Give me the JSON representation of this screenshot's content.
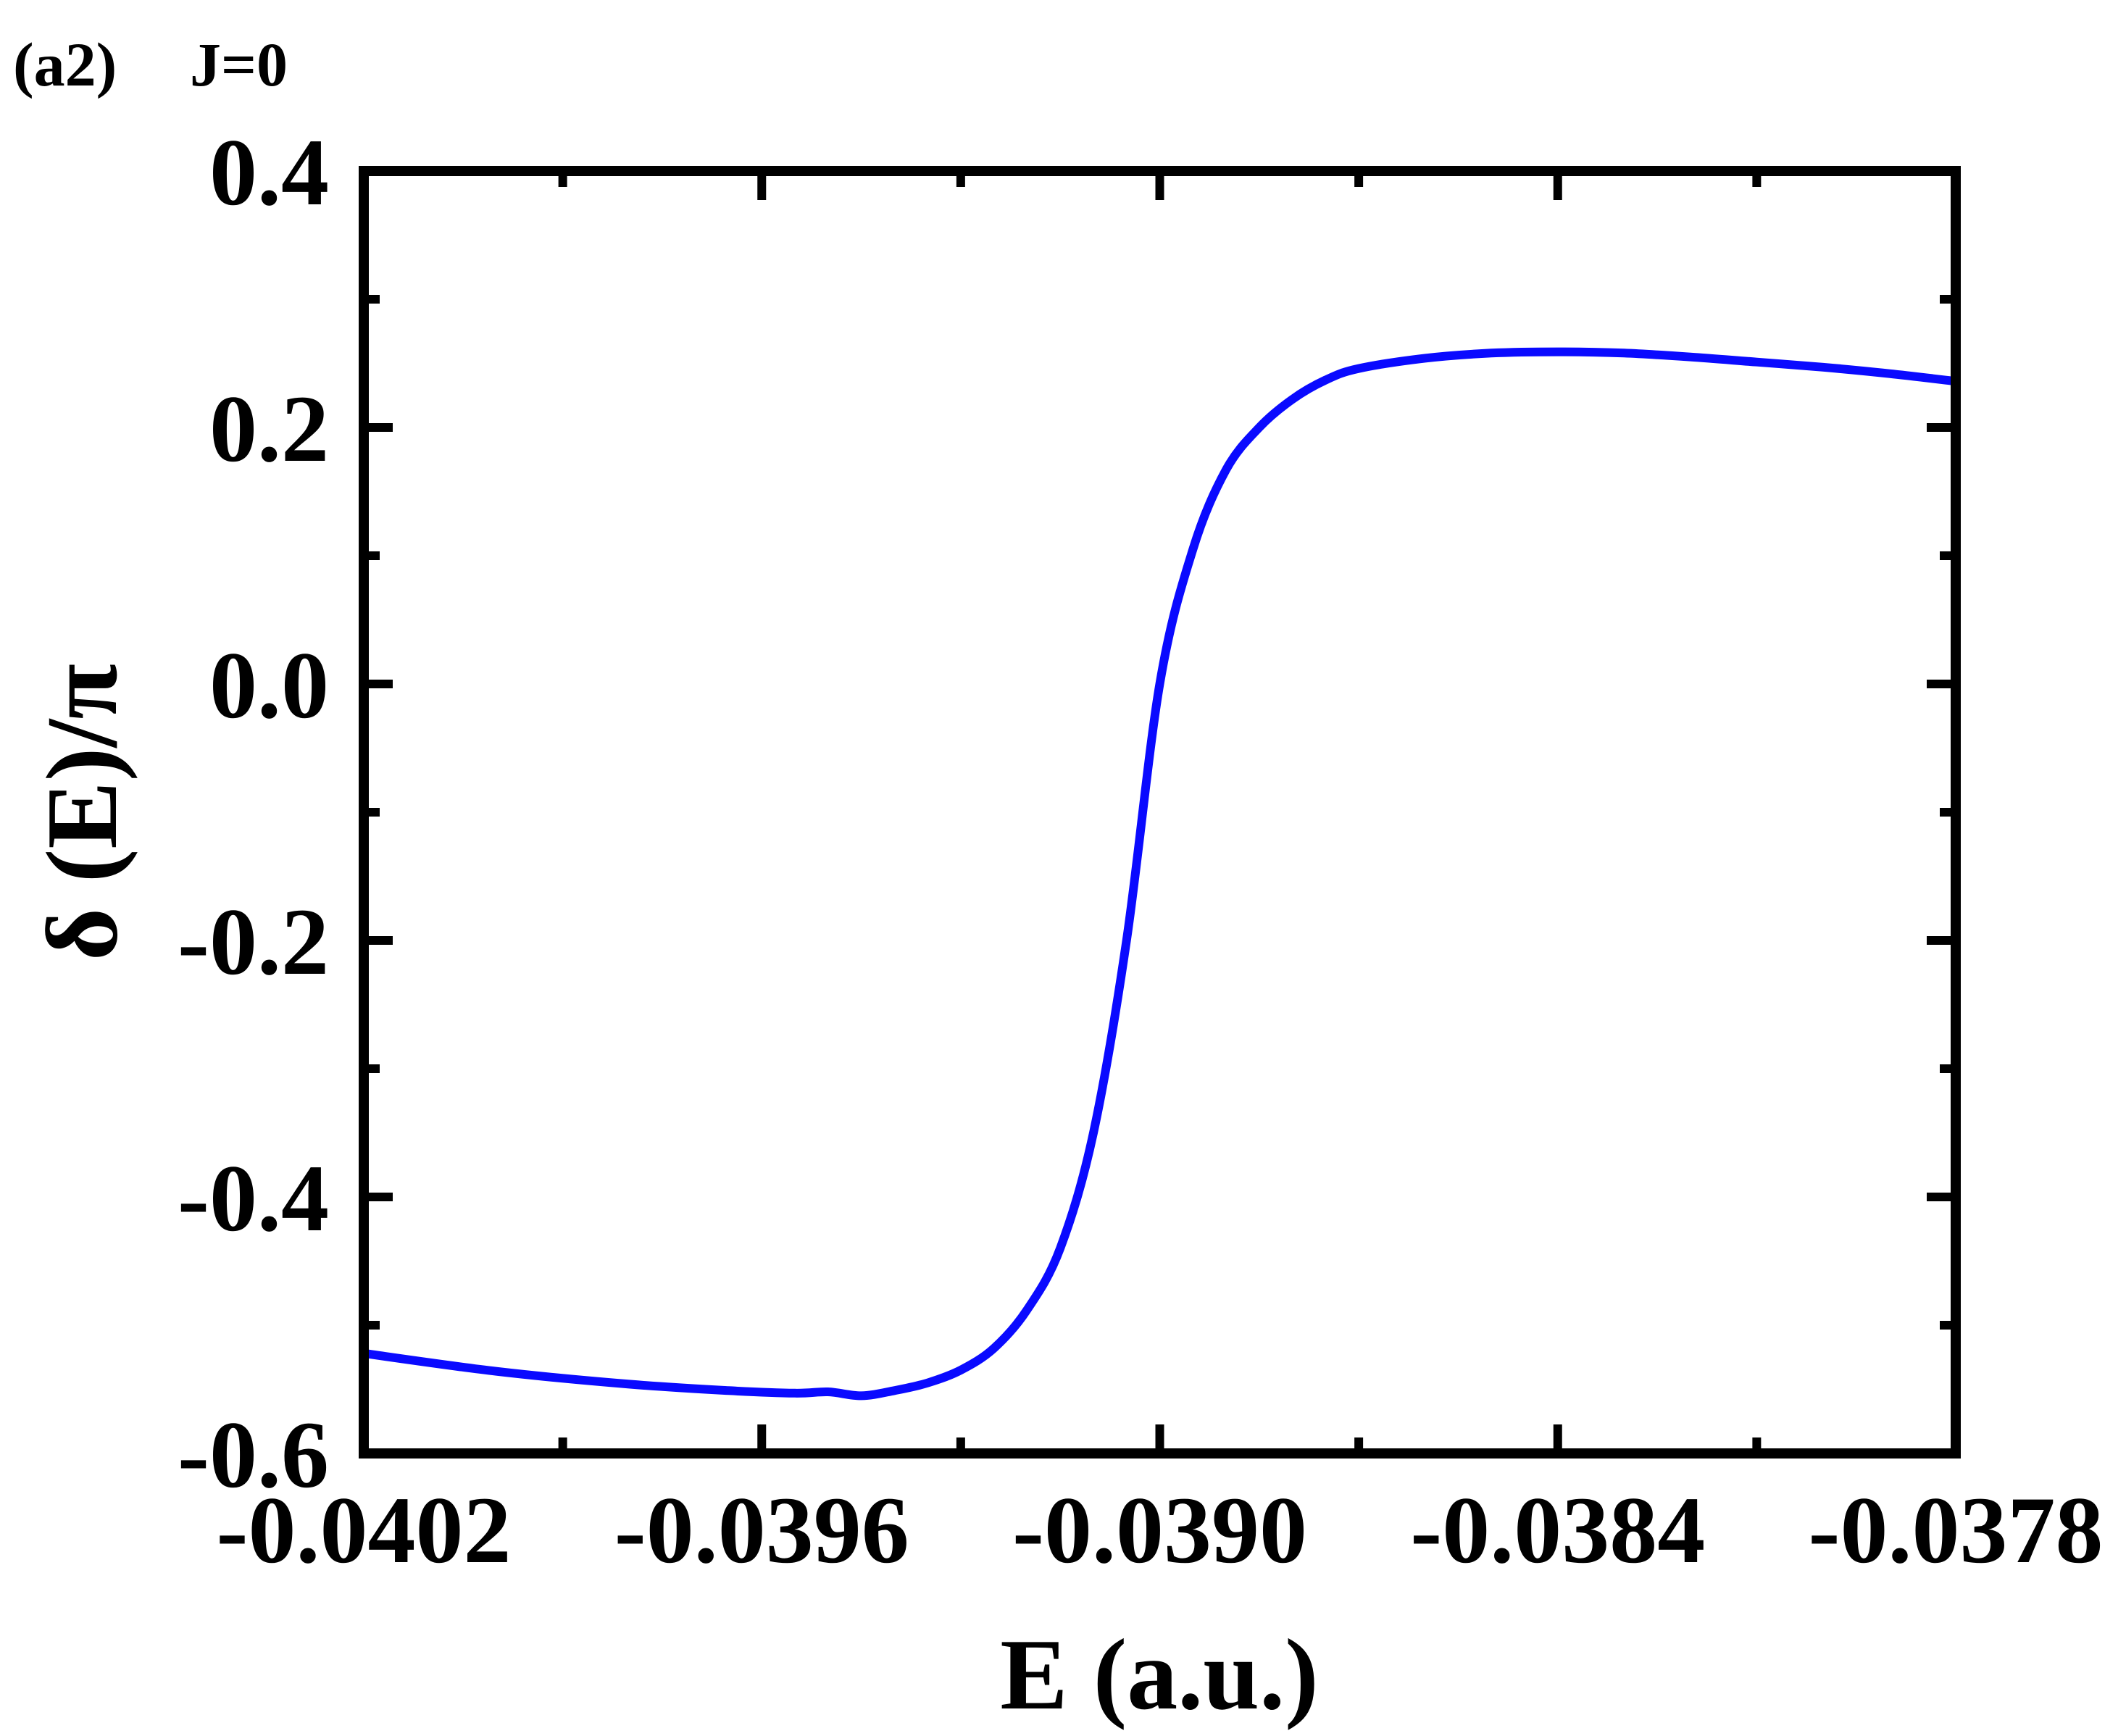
{
  "panel_label": "(a2)",
  "panel_note": "J=0",
  "chart_data": {
    "type": "line",
    "xlabel": "E (a.u.)",
    "ylabel": "δ (E)/π",
    "xlim": [
      -0.0402,
      -0.0378
    ],
    "ylim": [
      -0.6,
      0.4
    ],
    "xticks": [
      -0.0402,
      -0.0396,
      -0.039,
      -0.0384,
      -0.0378
    ],
    "xtick_labels": [
      "-0.0402",
      "-0.0396",
      "-0.0390",
      "-0.0384",
      "-0.0378"
    ],
    "yticks": [
      -0.6,
      -0.4,
      -0.2,
      0.0,
      0.2,
      0.4
    ],
    "ytick_labels": [
      "-0.6",
      "-0.4",
      "-0.2",
      "0.0",
      "0.2",
      "0.4"
    ],
    "grid": false,
    "series": [
      {
        "color": "#0a0aff",
        "x": [
          -0.0402,
          -0.04,
          -0.0398,
          -0.03965,
          -0.03955,
          -0.0395,
          -0.03945,
          -0.0394,
          -0.03935,
          -0.0393,
          -0.03925,
          -0.0392,
          -0.03915,
          -0.0391,
          -0.03905,
          -0.039,
          -0.03895,
          -0.0389,
          -0.03885,
          -0.0388,
          -0.03875,
          -0.0387,
          -0.0386,
          -0.0385,
          -0.0384,
          -0.0383,
          -0.0382,
          -0.0381,
          -0.038,
          -0.0379,
          -0.0378
        ],
        "y": [
          -0.522,
          -0.536,
          -0.546,
          -0.551,
          -0.553,
          -0.552,
          -0.555,
          -0.551,
          -0.545,
          -0.535,
          -0.518,
          -0.488,
          -0.44,
          -0.35,
          -0.2,
          0.0,
          0.105,
          0.167,
          0.2,
          0.222,
          0.237,
          0.246,
          0.254,
          0.258,
          0.259,
          0.258,
          0.255,
          0.251,
          0.247,
          0.242,
          0.236
        ]
      }
    ]
  }
}
